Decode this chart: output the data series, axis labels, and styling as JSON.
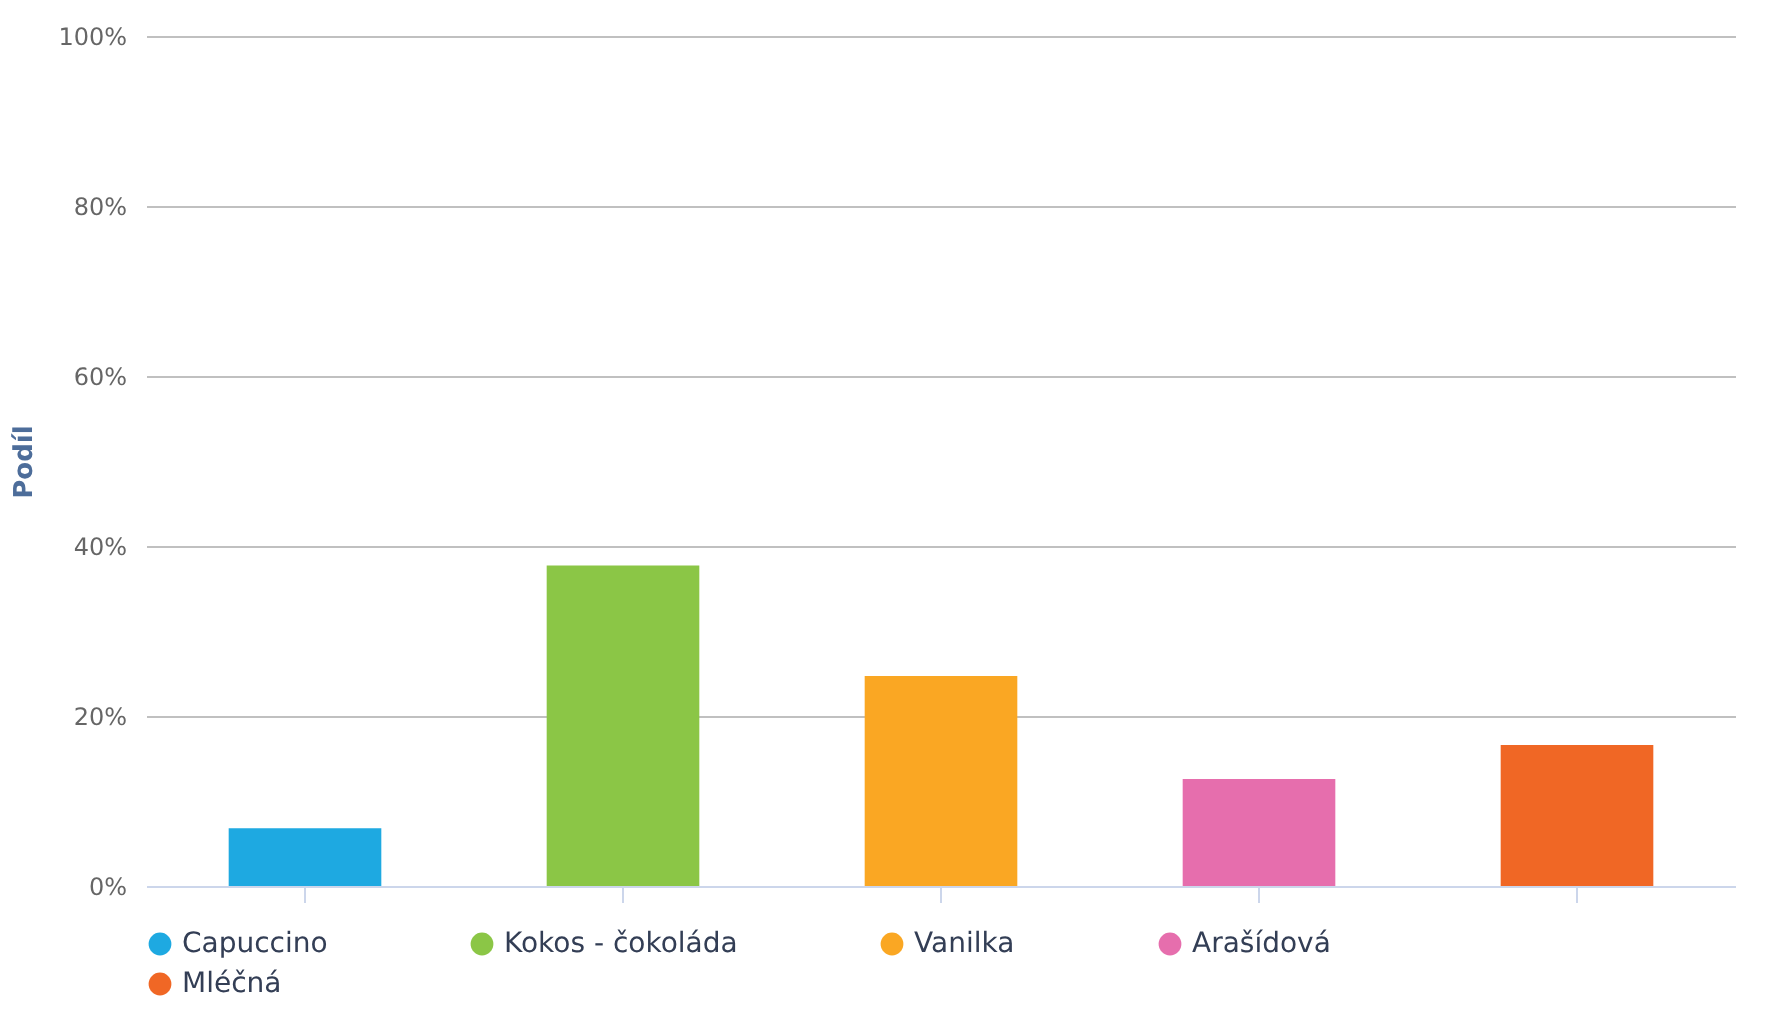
{
  "chart_data": {
    "type": "bar",
    "ylabel": "Podíl",
    "categories": [
      null,
      null,
      null,
      null,
      null
    ],
    "series": [
      {
        "name": "Capuccino",
        "color": "#1ea9e1",
        "values": [
          6.8,
          null,
          null,
          null,
          null
        ]
      },
      {
        "name": "Kokos - čokoláda",
        "color": "#8bc646",
        "values": [
          null,
          37.7,
          null,
          null,
          null
        ]
      },
      {
        "name": "Vanilka",
        "color": "#faa723",
        "values": [
          null,
          null,
          24.7,
          null,
          null
        ]
      },
      {
        "name": "Arašídová",
        "color": "#e66ead",
        "values": [
          null,
          null,
          null,
          12.6,
          null
        ]
      },
      {
        "name": "Mléčná",
        "color": "#f06725",
        "values": [
          null,
          null,
          null,
          null,
          16.6
        ]
      }
    ],
    "ylim": [
      0,
      100
    ],
    "yticks": [
      {
        "value": 0,
        "label": "0%"
      },
      {
        "value": 20,
        "label": "20%"
      },
      {
        "value": 40,
        "label": "40%"
      },
      {
        "value": 60,
        "label": "60%"
      },
      {
        "value": 80,
        "label": "80%"
      },
      {
        "value": 100,
        "label": "100%"
      }
    ],
    "grid": "y",
    "legend": "bottom"
  }
}
